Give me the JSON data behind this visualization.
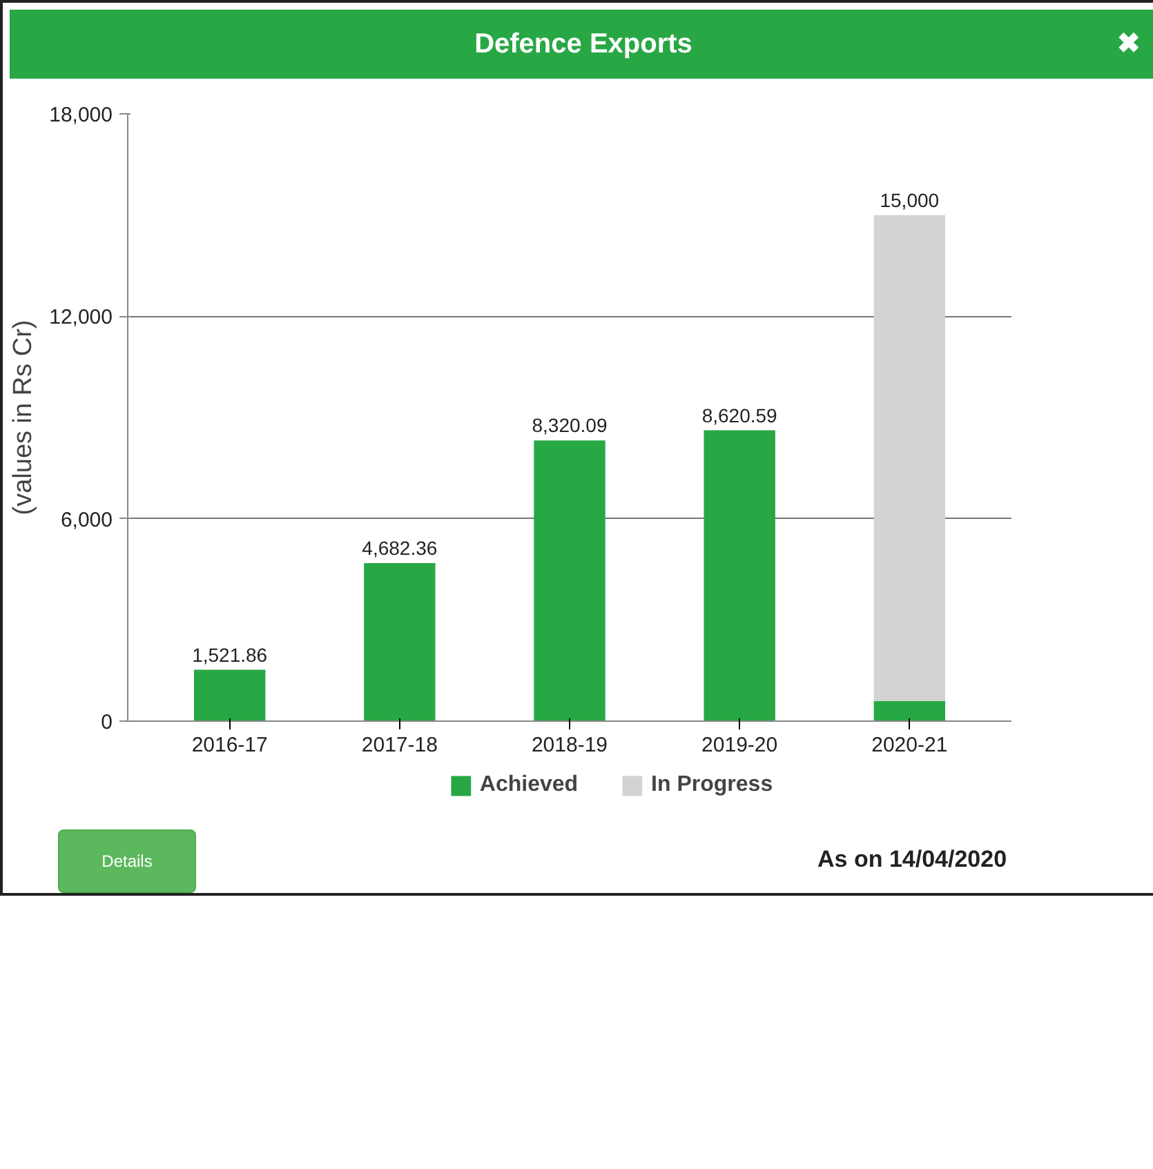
{
  "chart_data": {
    "type": "bar",
    "title": "Defence Exports",
    "ylabel": "(values in Rs Cr)",
    "categories": [
      "2016-17",
      "2017-18",
      "2018-19",
      "2019-20",
      "2020-21"
    ],
    "stacked": true,
    "series": [
      {
        "name": "Achieved",
        "color": "#28a745",
        "values": [
          1521.86,
          4682.36,
          8320.09,
          8620.59,
          600
        ],
        "value_labels": [
          "1,521.86",
          "4,682.36",
          "8,320.09",
          "8,620.59",
          null
        ]
      },
      {
        "name": "In Progress",
        "color": "#d3d3d3",
        "values": [
          null,
          null,
          null,
          null,
          14400
        ]
      }
    ],
    "totals": [
      null,
      null,
      null,
      null,
      "15,000"
    ],
    "ylim": [
      0,
      18000
    ],
    "yticks": [
      {
        "value": 0,
        "label": "0"
      },
      {
        "value": 6000,
        "label": "6,000"
      },
      {
        "value": 12000,
        "label": "12,000"
      },
      {
        "value": 18000,
        "label": "18,000"
      }
    ],
    "grid": "y",
    "legend": "bottom",
    "annotations": [
      "✖",
      "Details",
      "As on 14/04/2020"
    ]
  }
}
